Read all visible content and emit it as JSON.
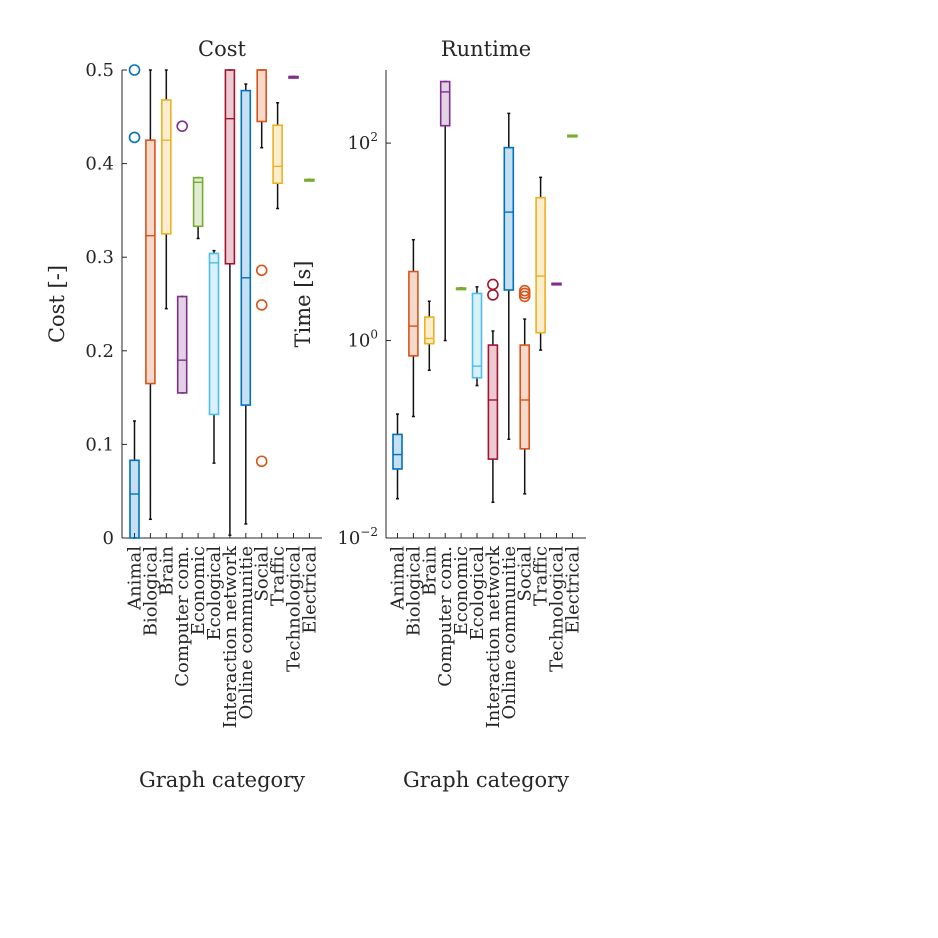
{
  "chart_data": [
    {
      "type": "box",
      "title": "Cost",
      "xlabel": "Graph category",
      "ylabel": "Cost [-]",
      "ylim": [
        0,
        0.5
      ],
      "yticks": [
        {
          "value": 0,
          "label": "0"
        },
        {
          "value": 0.1,
          "label": "0.1"
        },
        {
          "value": 0.2,
          "label": "0.2"
        },
        {
          "value": 0.3,
          "label": "0.3"
        },
        {
          "value": 0.4,
          "label": "0.4"
        },
        {
          "value": 0.5,
          "label": "0.5"
        }
      ],
      "grid": false,
      "categories": [
        "Animal",
        "Biological",
        "Brain",
        "Computer com.",
        "Economic",
        "Ecological",
        "Interaction network",
        "Online communitie",
        "Social",
        "Traffic",
        "Technological",
        "Electrical"
      ],
      "boxes": [
        {
          "category": "Animal",
          "color": "#0072BD",
          "q1": 0.0,
          "median": 0.047,
          "q3": 0.083,
          "whisker_low": 0.0,
          "whisker_high": 0.125,
          "outliers": [
            0.428,
            0.5
          ]
        },
        {
          "category": "Biological",
          "color": "#D95319",
          "q1": 0.165,
          "median": 0.323,
          "q3": 0.425,
          "whisker_low": 0.02,
          "whisker_high": 0.5,
          "outliers": []
        },
        {
          "category": "Brain",
          "color": "#EDB120",
          "q1": 0.325,
          "median": 0.425,
          "q3": 0.468,
          "whisker_low": 0.245,
          "whisker_high": 0.5,
          "outliers": []
        },
        {
          "category": "Computer com.",
          "color": "#7E2F8E",
          "q1": 0.155,
          "median": 0.19,
          "q3": 0.258,
          "whisker_low": 0.155,
          "whisker_high": 0.258,
          "outliers": [
            0.44
          ]
        },
        {
          "category": "Economic",
          "color": "#77AC30",
          "q1": 0.333,
          "median": 0.38,
          "q3": 0.385,
          "whisker_low": 0.32,
          "whisker_high": 0.385,
          "outliers": []
        },
        {
          "category": "Ecological",
          "color": "#4DBEEE",
          "q1": 0.132,
          "median": 0.294,
          "q3": 0.304,
          "whisker_low": 0.08,
          "whisker_high": 0.307,
          "outliers": []
        },
        {
          "category": "Interaction network",
          "color": "#A2142F",
          "q1": 0.293,
          "median": 0.448,
          "q3": 0.5,
          "whisker_low": 0.003,
          "whisker_high": 0.5,
          "outliers": []
        },
        {
          "category": "Online communitie",
          "color": "#0072BD",
          "q1": 0.142,
          "median": 0.278,
          "q3": 0.478,
          "whisker_low": 0.015,
          "whisker_high": 0.485,
          "outliers": []
        },
        {
          "category": "Social",
          "color": "#D95319",
          "q1": 0.445,
          "median": 0.5,
          "q3": 0.5,
          "whisker_low": 0.417,
          "whisker_high": 0.5,
          "outliers": [
            0.286,
            0.249,
            0.082
          ]
        },
        {
          "category": "Traffic",
          "color": "#EDB120",
          "q1": 0.379,
          "median": 0.397,
          "q3": 0.441,
          "whisker_low": 0.352,
          "whisker_high": 0.465,
          "outliers": []
        },
        {
          "category": "Technological",
          "color": "#7E2F8E",
          "q1": 0.493,
          "median": 0.493,
          "q3": 0.493,
          "whisker_low": 0.493,
          "whisker_high": 0.493,
          "outliers": []
        },
        {
          "category": "Electrical",
          "color": "#77AC30",
          "q1": 0.383,
          "median": 0.383,
          "q3": 0.383,
          "whisker_low": 0.383,
          "whisker_high": 0.383,
          "outliers": []
        }
      ]
    },
    {
      "type": "box",
      "title": "Runtime",
      "xlabel": "Graph category",
      "ylabel": "Time [s]",
      "yscale": "log",
      "ylim": [
        0.01,
        550
      ],
      "yticks": [
        {
          "value": 0.01,
          "base": "10",
          "exp": "−2"
        },
        {
          "value": 1,
          "base": "10",
          "exp": "0"
        },
        {
          "value": 100,
          "base": "10",
          "exp": "2"
        }
      ],
      "grid": false,
      "categories": [
        "Animal",
        "Biological",
        "Brain",
        "Computer com.",
        "Economic",
        "Ecological",
        "Interaction network",
        "Online communitie",
        "Social",
        "Traffic",
        "Technological",
        "Electrical"
      ],
      "boxes": [
        {
          "category": "Animal",
          "color": "#0072BD",
          "q1": 0.05,
          "median": 0.07,
          "q3": 0.112,
          "whisker_low": 0.025,
          "whisker_high": 0.18,
          "outliers": []
        },
        {
          "category": "Biological",
          "color": "#D95319",
          "q1": 0.7,
          "median": 1.4,
          "q3": 5.0,
          "whisker_low": 0.17,
          "whisker_high": 10.5,
          "outliers": []
        },
        {
          "category": "Brain",
          "color": "#EDB120",
          "q1": 0.93,
          "median": 1.05,
          "q3": 1.73,
          "whisker_low": 0.5,
          "whisker_high": 2.5,
          "outliers": []
        },
        {
          "category": "Computer com.",
          "color": "#7E2F8E",
          "q1": 150,
          "median": 330,
          "q3": 420,
          "whisker_low": 1.0,
          "whisker_high": 420,
          "outliers": []
        },
        {
          "category": "Economic",
          "color": "#77AC30",
          "q1": 3.4,
          "median": 3.4,
          "q3": 3.4,
          "whisker_low": 3.4,
          "whisker_high": 3.4,
          "outliers": []
        },
        {
          "category": "Ecological",
          "color": "#4DBEEE",
          "q1": 0.42,
          "median": 0.55,
          "q3": 3.0,
          "whisker_low": 0.35,
          "whisker_high": 3.5,
          "outliers": []
        },
        {
          "category": "Interaction network",
          "color": "#A2142F",
          "q1": 0.063,
          "median": 0.25,
          "q3": 0.9,
          "whisker_low": 0.023,
          "whisker_high": 1.25,
          "outliers": [
            3.7,
            2.9
          ]
        },
        {
          "category": "Online communitie",
          "color": "#0072BD",
          "q1": 3.25,
          "median": 20,
          "q3": 90,
          "whisker_low": 0.1,
          "whisker_high": 200,
          "outliers": []
        },
        {
          "category": "Social",
          "color": "#D95319",
          "q1": 0.08,
          "median": 0.25,
          "q3": 0.9,
          "whisker_low": 0.028,
          "whisker_high": 1.65,
          "outliers": [
            3.2,
            3.0,
            2.8
          ]
        },
        {
          "category": "Traffic",
          "color": "#EDB120",
          "q1": 1.2,
          "median": 4.5,
          "q3": 28,
          "whisker_low": 0.8,
          "whisker_high": 45,
          "outliers": []
        },
        {
          "category": "Technological",
          "color": "#7E2F8E",
          "q1": 3.8,
          "median": 3.8,
          "q3": 3.8,
          "whisker_low": 3.8,
          "whisker_high": 3.8,
          "outliers": []
        },
        {
          "category": "Electrical",
          "color": "#77AC30",
          "q1": 120,
          "median": 120,
          "q3": 120,
          "whisker_low": 120,
          "whisker_high": 120,
          "outliers": []
        }
      ]
    }
  ]
}
